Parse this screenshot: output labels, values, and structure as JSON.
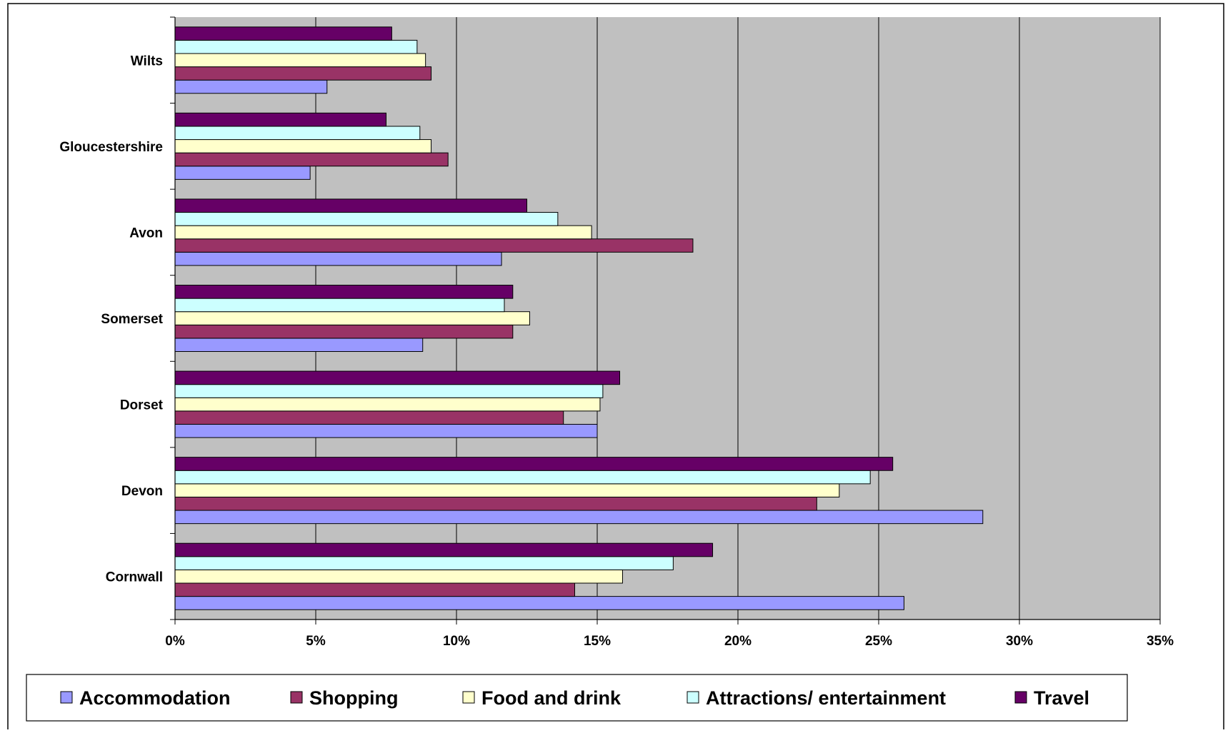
{
  "chart_data": {
    "type": "bar",
    "orientation": "horizontal",
    "categories": [
      "Wilts",
      "Gloucestershire",
      "Avon",
      "Somerset",
      "Dorset",
      "Devon",
      "Cornwall"
    ],
    "series": [
      {
        "name": "Accommodation",
        "color": "#9999ff",
        "values": [
          5.4,
          4.8,
          11.6,
          8.8,
          15.0,
          28.7,
          25.9
        ]
      },
      {
        "name": "Shopping",
        "color": "#993366",
        "values": [
          9.1,
          9.7,
          18.4,
          12.0,
          13.8,
          22.8,
          14.2
        ]
      },
      {
        "name": "Food and drink",
        "color": "#ffffcc",
        "values": [
          8.9,
          9.1,
          14.8,
          12.6,
          15.1,
          23.6,
          15.9
        ]
      },
      {
        "name": "Attractions/ entertainment",
        "color": "#ccffff",
        "values": [
          8.6,
          8.7,
          13.6,
          11.7,
          15.2,
          24.7,
          17.7
        ]
      },
      {
        "name": "Travel",
        "color": "#660066",
        "values": [
          7.7,
          7.5,
          12.5,
          12.0,
          15.8,
          25.5,
          19.1
        ]
      }
    ],
    "xlim": [
      0,
      35
    ],
    "xticks": [
      "0%",
      "5%",
      "10%",
      "15%",
      "20%",
      "25%",
      "30%",
      "35%"
    ],
    "grid": true,
    "plot_background": "#c0c0c0",
    "legend_position": "bottom"
  }
}
